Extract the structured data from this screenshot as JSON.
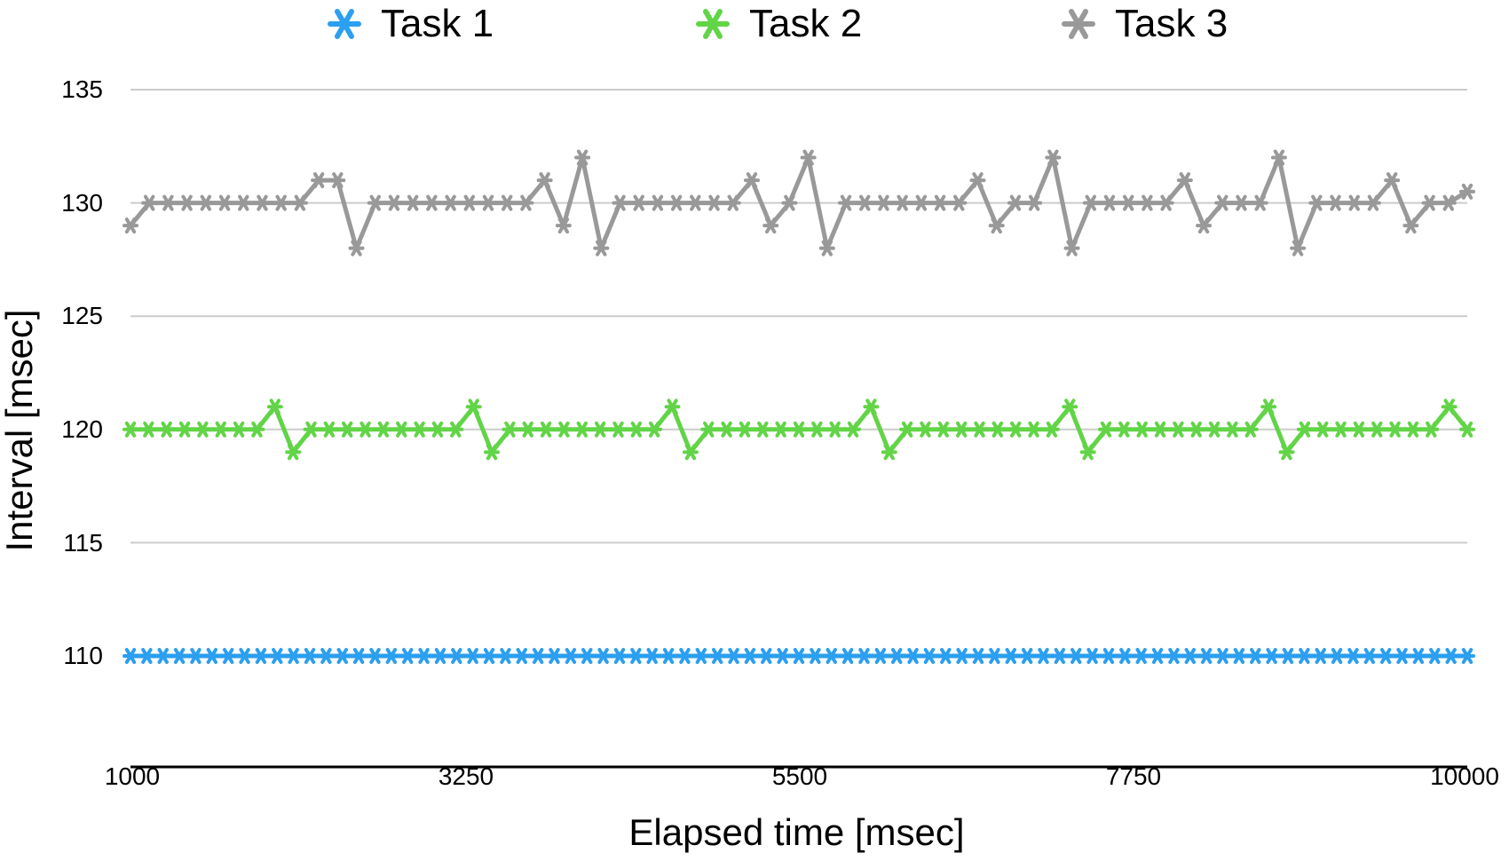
{
  "chart_data": {
    "type": "line",
    "title": "",
    "xlabel": "Elapsed time [msec]",
    "ylabel": "Interval [msec]",
    "xlim": [
      1000,
      10000
    ],
    "ylim": [
      105,
      135
    ],
    "x_ticks": [
      "1000",
      "3250",
      "5500",
      "7750",
      "10000"
    ],
    "y_ticks": [
      "110",
      "115",
      "120",
      "125",
      "130",
      "135"
    ],
    "grid": "horizontal",
    "legend_position": "top",
    "series": [
      {
        "name": "Task 1",
        "color": "#2b9ff0",
        "marker": "star",
        "start": 1000,
        "step": 110,
        "values": [
          110,
          110,
          110,
          110,
          110,
          110,
          110,
          110,
          110,
          110,
          110,
          110,
          110,
          110,
          110,
          110,
          110,
          110,
          110,
          110,
          110,
          110,
          110,
          110,
          110,
          110,
          110,
          110,
          110,
          110,
          110,
          110,
          110,
          110,
          110,
          110,
          110,
          110,
          110,
          110,
          110,
          110,
          110,
          110,
          110,
          110,
          110,
          110,
          110,
          110,
          110,
          110,
          110,
          110,
          110,
          110,
          110,
          110,
          110,
          110,
          110,
          110,
          110,
          110,
          110,
          110,
          110,
          110,
          110,
          110,
          110,
          110,
          110,
          110,
          110,
          110,
          110,
          110,
          110,
          110,
          110,
          110,
          110
        ]
      },
      {
        "name": "Task 2",
        "color": "#62d447",
        "marker": "star",
        "start": 1000,
        "step": 120,
        "values": [
          120,
          120,
          120,
          120,
          120,
          120,
          120,
          120,
          121,
          119,
          120,
          120,
          120,
          120,
          120,
          120,
          120,
          120,
          120,
          121,
          119,
          120,
          120,
          120,
          120,
          120,
          120,
          120,
          120,
          120,
          121,
          119,
          120,
          120,
          120,
          120,
          120,
          120,
          120,
          120,
          120,
          121,
          119,
          120,
          120,
          120,
          120,
          120,
          120,
          120,
          120,
          120,
          121,
          119,
          120,
          120,
          120,
          120,
          120,
          120,
          120,
          120,
          120,
          121,
          119,
          120,
          120,
          120,
          120,
          120,
          120,
          120,
          120,
          121,
          120
        ]
      },
      {
        "name": "Task 3",
        "color": "#999999",
        "marker": "star",
        "start": 1000,
        "step": 130,
        "values": [
          129,
          130,
          130,
          130,
          130,
          130,
          130,
          130,
          130,
          130,
          131,
          131,
          128,
          130,
          130,
          130,
          130,
          130,
          130,
          130,
          130,
          130,
          131,
          129,
          132,
          128,
          130,
          130,
          130,
          130,
          130,
          130,
          130,
          131,
          129,
          130,
          132,
          128,
          130,
          130,
          130,
          130,
          130,
          130,
          130,
          131,
          129,
          130,
          130,
          132,
          128,
          130,
          130,
          130,
          130,
          130,
          131,
          129,
          130,
          130,
          130,
          132,
          128,
          130,
          130,
          130,
          130,
          131,
          129,
          130,
          130,
          130.5
        ]
      }
    ]
  }
}
